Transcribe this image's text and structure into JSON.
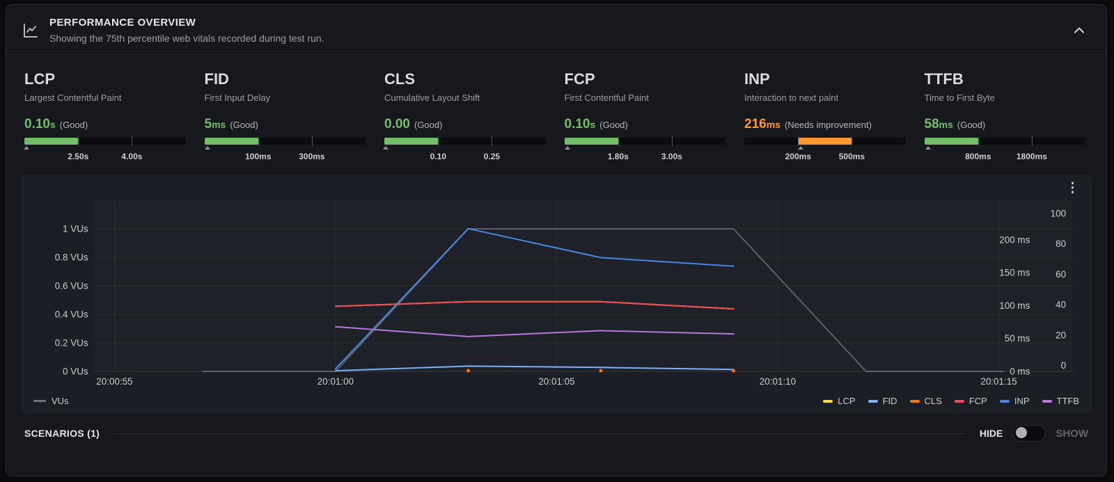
{
  "header": {
    "title": "PERFORMANCE OVERVIEW",
    "subtitle": "Showing the 75th percentile web vitals recorded during test run."
  },
  "colors": {
    "good": "#73bf69",
    "needs_improvement": "#ff9830",
    "panel_bg": "#16181d",
    "chart_bg": "#1b1e24"
  },
  "vitals": [
    {
      "code": "LCP",
      "name": "Largest Contentful Paint",
      "value": "0.10",
      "unit": "s",
      "status": "(Good)",
      "color": "#73bf69",
      "fill_left": 0,
      "fill_width": 33.4,
      "caret_pct": 1.5,
      "ticks": [
        "2.50s",
        "4.00s"
      ]
    },
    {
      "code": "FID",
      "name": "First Input Delay",
      "value": "5",
      "unit": "ms",
      "status": "(Good)",
      "color": "#73bf69",
      "fill_left": 0,
      "fill_width": 33.4,
      "caret_pct": 2,
      "ticks": [
        "100ms",
        "300ms"
      ]
    },
    {
      "code": "CLS",
      "name": "Cumulative Layout Shift",
      "value": "0.00",
      "unit": "",
      "status": "(Good)",
      "color": "#73bf69",
      "fill_left": 0,
      "fill_width": 33.4,
      "caret_pct": 0.8,
      "ticks": [
        "0.10",
        "0.25"
      ]
    },
    {
      "code": "FCP",
      "name": "First Contentful Paint",
      "value": "0.10",
      "unit": "s",
      "status": "(Good)",
      "color": "#73bf69",
      "fill_left": 0,
      "fill_width": 33.4,
      "caret_pct": 2,
      "ticks": [
        "1.80s",
        "3.00s"
      ]
    },
    {
      "code": "INP",
      "name": "Interaction to next paint",
      "value": "216",
      "unit": "ms",
      "status": "(Needs improvement)",
      "color": "#ff9830",
      "fill_left": 33.4,
      "fill_width": 33.3,
      "caret_pct": 35.2,
      "ticks": [
        "200ms",
        "500ms"
      ]
    },
    {
      "code": "TTFB",
      "name": "Time to First Byte",
      "value": "58",
      "unit": "ms",
      "status": "(Good)",
      "color": "#73bf69",
      "fill_left": 0,
      "fill_width": 33.4,
      "caret_pct": 2.4,
      "ticks": [
        "800ms",
        "1800ms"
      ]
    }
  ],
  "chart_data": {
    "type": "line",
    "title": "",
    "x_axis": {
      "unit": "time of day (hh:mm:ss)",
      "ticks": [
        {
          "t": 55,
          "label": "20:00:55"
        },
        {
          "t": 60,
          "label": "20:01:00"
        },
        {
          "t": 65,
          "label": "20:01:05"
        },
        {
          "t": 70,
          "label": "20:01:10"
        },
        {
          "t": 75,
          "label": "20:01:15"
        }
      ],
      "domain_seconds_after_2000": [
        54.5,
        76.7
      ]
    },
    "y_axis_vus": {
      "ticks": [
        {
          "v": 1.0,
          "label": "1 VUs"
        },
        {
          "v": 0.8,
          "label": "0.8 VUs"
        },
        {
          "v": 0.6,
          "label": "0.6 VUs"
        },
        {
          "v": 0.4,
          "label": "0.4 VUs"
        },
        {
          "v": 0.2,
          "label": "0.2 VUs"
        },
        {
          "v": 0.0,
          "label": "0 VUs"
        }
      ],
      "domain": [
        0,
        1.2
      ]
    },
    "y_axis_ms": {
      "ticks": [
        {
          "v": 200,
          "label": "200 ms"
        },
        {
          "v": 150,
          "label": "150 ms"
        },
        {
          "v": 100,
          "label": "100 ms"
        },
        {
          "v": 50,
          "label": "50 ms"
        },
        {
          "v": 0,
          "label": "0 ms"
        }
      ],
      "domain": [
        0,
        261
      ]
    },
    "y_axis_scalar": {
      "ticks": [
        {
          "v": 100,
          "label": "100"
        },
        {
          "v": 80,
          "label": "80"
        },
        {
          "v": 60,
          "label": "60"
        },
        {
          "v": 40,
          "label": "40"
        },
        {
          "v": 20,
          "label": "20"
        },
        {
          "v": 0,
          "label": "0"
        }
      ],
      "domain": [
        0,
        100
      ]
    },
    "series": [
      {
        "name": "VUs",
        "axis": "vus",
        "color": "#5d6067",
        "points": [
          [
            57,
            0
          ],
          [
            60,
            0
          ],
          [
            63,
            1
          ],
          [
            69,
            1
          ],
          [
            72,
            0
          ],
          [
            75.1,
            0
          ]
        ]
      },
      {
        "name": "LCP",
        "axis": "ms",
        "color": "#fade2a",
        "points": [
          [
            60,
            99
          ],
          [
            63,
            106
          ],
          [
            66,
            106
          ],
          [
            69,
            95
          ]
        ]
      },
      {
        "name": "TTFB",
        "axis": "ms",
        "color": "#b877d9",
        "points": [
          [
            60,
            68
          ],
          [
            63,
            53
          ],
          [
            66,
            62
          ],
          [
            69,
            57
          ]
        ]
      },
      {
        "name": "FCP",
        "axis": "ms",
        "color": "#f2495c",
        "points": [
          [
            60,
            99
          ],
          [
            63,
            106
          ],
          [
            66,
            106
          ],
          [
            69,
            95
          ]
        ]
      },
      {
        "name": "FID",
        "axis": "ms",
        "color": "#7db1f7",
        "points": [
          [
            60,
            1
          ],
          [
            63,
            8
          ],
          [
            66,
            6
          ],
          [
            69,
            3
          ]
        ]
      },
      {
        "name": "INP",
        "axis": "ms",
        "color": "#4a86e8",
        "points": [
          [
            60,
            4
          ],
          [
            63,
            217
          ],
          [
            66,
            173
          ],
          [
            69,
            160
          ]
        ]
      },
      {
        "name": "CLS",
        "axis": "ms",
        "color": "#ff780a",
        "style": "points",
        "points": [
          [
            63,
            0
          ],
          [
            66,
            0
          ],
          [
            69,
            0
          ]
        ]
      }
    ]
  },
  "legend": {
    "left": [
      {
        "label": "VUs",
        "color": "#70737a"
      }
    ],
    "right": [
      {
        "label": "LCP",
        "color": "#fade2a"
      },
      {
        "label": "FID",
        "color": "#7db1f7"
      },
      {
        "label": "CLS",
        "color": "#ff780a"
      },
      {
        "label": "FCP",
        "color": "#f2495c"
      },
      {
        "label": "INP",
        "color": "#4a86e8"
      },
      {
        "label": "TTFB",
        "color": "#b877d9"
      }
    ]
  },
  "footer": {
    "scenarios": "SCENARIOS (1)",
    "hide": "HIDE",
    "show": "SHOW"
  }
}
